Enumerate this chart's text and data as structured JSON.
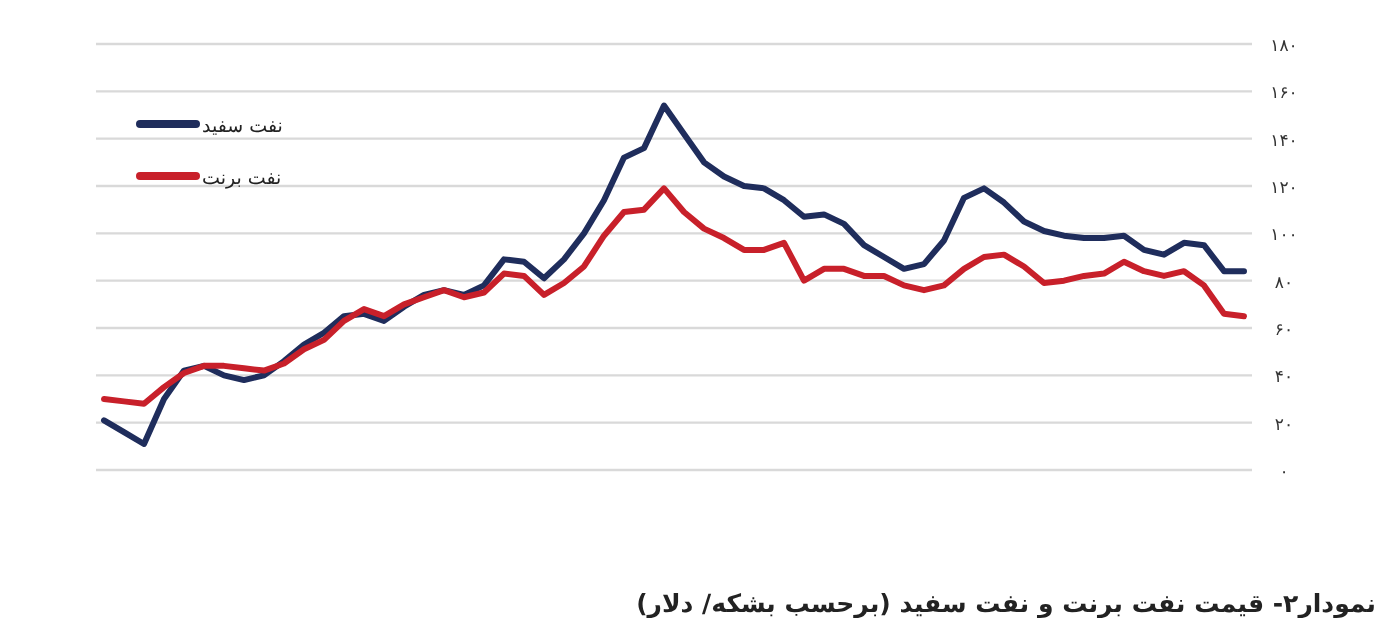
{
  "chart_data": {
    "type": "line",
    "title": "نمودار۲- قیمت نفت برنت و نفت سفید (برحسب بشکه/ دلار)",
    "categories": [
      null,
      null,
      null,
      null,
      null,
      null,
      null,
      null,
      null,
      null,
      null,
      null,
      null,
      null,
      null,
      null,
      null,
      null,
      null,
      null,
      null,
      null,
      null,
      null,
      null,
      null,
      null,
      null,
      null,
      null,
      null,
      null,
      null,
      null,
      null,
      null,
      null,
      null,
      null,
      null,
      null,
      null,
      null,
      null,
      null,
      null,
      null,
      null,
      null,
      null,
      null,
      null,
      null,
      null,
      null,
      null,
      null,
      null
    ],
    "series": [
      {
        "name": "نفت سفید",
        "color": "#1f2d5c",
        "values": [
          21,
          16,
          11,
          30,
          42,
          44,
          40,
          38,
          40,
          46,
          53,
          58,
          65,
          66,
          63,
          69,
          74,
          76,
          74,
          78,
          89,
          88,
          81,
          89,
          100,
          114,
          132,
          136,
          154,
          142,
          130,
          124,
          120,
          119,
          114,
          107,
          108,
          104,
          95,
          90,
          85,
          87,
          97,
          115,
          119,
          113,
          105,
          101,
          99,
          98,
          98,
          99,
          93,
          91,
          96,
          95,
          84,
          84
        ]
      },
      {
        "name": "نفت برنت",
        "color": "#c8202a",
        "values": [
          30,
          29,
          28,
          35,
          41,
          44,
          44,
          43,
          42,
          45,
          51,
          55,
          63,
          68,
          65,
          70,
          73,
          76,
          73,
          75,
          83,
          82,
          74,
          79,
          86,
          99,
          109,
          110,
          119,
          109,
          102,
          98,
          93,
          93,
          96,
          80,
          85,
          85,
          82,
          82,
          78,
          76,
          78,
          85,
          90,
          91,
          86,
          79,
          80,
          82,
          83,
          88,
          84,
          82,
          84,
          78,
          66,
          65
        ]
      }
    ],
    "ylim": [
      0,
      180
    ],
    "yticks": [
      {
        "value": 0,
        "label": "۰"
      },
      {
        "value": 20,
        "label": "۲۰"
      },
      {
        "value": 40,
        "label": "۴۰"
      },
      {
        "value": 60,
        "label": "۶۰"
      },
      {
        "value": 80,
        "label": "۸۰"
      },
      {
        "value": 100,
        "label": "۱۰۰"
      },
      {
        "value": 120,
        "label": "۱۲۰"
      },
      {
        "value": 140,
        "label": "۱۴۰"
      },
      {
        "value": 160,
        "label": "۱۶۰"
      },
      {
        "value": 180,
        "label": "۱۸۰"
      }
    ],
    "grid": "y",
    "legend": "top left",
    "line_style": "solid"
  }
}
